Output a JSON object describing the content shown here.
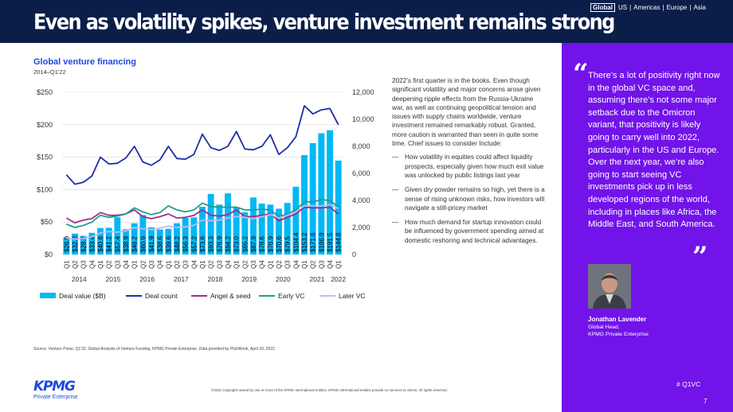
{
  "header": {
    "title": "Even as volatility spikes, venture investment remains strong",
    "regions": [
      "Global",
      "US",
      "Americas",
      "Europe",
      "Asia"
    ],
    "active_region": "Global"
  },
  "chart_heading": {
    "title": "Global venture financing",
    "subtitle": "2014–Q1'22"
  },
  "chart_data": {
    "type": "bar",
    "title": "Global venture financing",
    "subtitle": "2014–Q1'22",
    "quarters": [
      "Q1",
      "Q2",
      "Q3",
      "Q4",
      "Q1",
      "Q2",
      "Q3",
      "Q4",
      "Q1",
      "Q2",
      "Q3",
      "Q4",
      "Q1",
      "Q2",
      "Q3",
      "Q4",
      "Q1",
      "Q2",
      "Q3",
      "Q4",
      "Q1",
      "Q2",
      "Q3",
      "Q4",
      "Q1",
      "Q2",
      "Q3",
      "Q4",
      "Q1",
      "Q2",
      "Q3",
      "Q4",
      "Q1"
    ],
    "years": [
      {
        "label": "2014",
        "start": 0,
        "end": 3
      },
      {
        "label": "2015",
        "start": 4,
        "end": 7
      },
      {
        "label": "2016",
        "start": 8,
        "end": 11
      },
      {
        "label": "2017",
        "start": 12,
        "end": 15
      },
      {
        "label": "2018",
        "start": 16,
        "end": 19
      },
      {
        "label": "2019",
        "start": 20,
        "end": 23
      },
      {
        "label": "2020",
        "start": 24,
        "end": 27
      },
      {
        "label": "2021",
        "start": 28,
        "end": 31
      },
      {
        "label": "2022",
        "start": 32,
        "end": 32
      }
    ],
    "bar_labels": [
      "$26.0",
      "$32.2",
      "$28.7",
      "$33.4",
      "$40.8",
      "$41.2",
      "$57.4",
      "$38.9",
      "$48.2",
      "$60.9",
      "$41.9",
      "$38.6",
      "$39.6",
      "$48.2",
      "$56.3",
      "$57.2",
      "$73.6",
      "$93.3",
      "$76.9",
      "$94.2",
      "$73.0",
      "$65.2",
      "$87.9",
      "$78.6",
      "$76.9",
      "$70.6",
      "$79.5",
      "$104.4",
      "$153.2",
      "$171.6",
      "$186.9",
      "$191.5",
      "$144.8"
    ],
    "bar_values": [
      26.0,
      32.2,
      28.7,
      33.4,
      40.8,
      41.2,
      57.4,
      38.9,
      48.2,
      60.9,
      41.9,
      38.6,
      39.6,
      48.2,
      56.3,
      57.2,
      73.6,
      93.3,
      76.9,
      94.2,
      73.0,
      65.2,
      87.9,
      78.6,
      76.9,
      70.6,
      79.5,
      104.4,
      153.2,
      171.6,
      186.9,
      191.5,
      144.8
    ],
    "series": [
      {
        "name": "Deal value ($B)",
        "type": "bar",
        "axis": "left",
        "color": "#00b8f5"
      },
      {
        "name": "Deal count",
        "type": "line",
        "axis": "right",
        "color": "#1e2ea8",
        "values": [
          5900,
          5200,
          5350,
          5800,
          7200,
          6700,
          6750,
          7150,
          8000,
          6850,
          6600,
          7000,
          8000,
          7100,
          7050,
          7400,
          8900,
          7900,
          7700,
          8000,
          9100,
          7800,
          7750,
          8000,
          8850,
          7400,
          7900,
          8700,
          11000,
          10400,
          10700,
          10800,
          9600
        ]
      },
      {
        "name": "Angel & seed",
        "type": "line",
        "axis": "right",
        "color": "#9b2f8f",
        "values": [
          2700,
          2350,
          2550,
          2650,
          3100,
          2900,
          2900,
          3000,
          3300,
          2800,
          2650,
          2800,
          3000,
          2700,
          2750,
          2900,
          3300,
          2900,
          2850,
          2950,
          3300,
          2800,
          2800,
          2900,
          3000,
          2500,
          2750,
          3000,
          3500,
          3450,
          3450,
          3500,
          3000
        ]
      },
      {
        "name": "Early VC",
        "type": "line",
        "axis": "right",
        "color": "#1f9e8d",
        "values": [
          2250,
          2000,
          2150,
          2400,
          2900,
          2750,
          2850,
          3000,
          3450,
          3150,
          2950,
          3100,
          3600,
          3300,
          3150,
          3300,
          3800,
          3550,
          3500,
          3500,
          3500,
          3300,
          3300,
          3350,
          3300,
          2800,
          3000,
          3300,
          3900,
          3900,
          4050,
          4000,
          3500
        ]
      },
      {
        "name": "Later VC",
        "type": "line",
        "axis": "right",
        "color": "#c8b7ec",
        "values": [
          1200,
          1150,
          1200,
          1300,
          1600,
          1700,
          1650,
          1750,
          2000,
          1900,
          1850,
          1950,
          2100,
          2000,
          2050,
          2150,
          2550,
          2500,
          2550,
          2700,
          2800,
          2750,
          2650,
          2800,
          2950,
          2700,
          2900,
          3150,
          3600,
          3600,
          3600,
          3700,
          3400
        ]
      }
    ],
    "left_axis": {
      "range": [
        0,
        250
      ],
      "ticks": [
        "$0",
        "$50",
        "$100",
        "$150",
        "$200",
        "$250"
      ],
      "values": [
        0,
        50,
        100,
        150,
        200,
        250
      ]
    },
    "right_axis": {
      "range": [
        0,
        12000
      ],
      "ticks": [
        "0",
        "2,000",
        "4,000",
        "6,000",
        "8,000",
        "10,000",
        "12,000"
      ],
      "values": [
        0,
        2000,
        4000,
        6000,
        8000,
        10000,
        12000
      ]
    },
    "grid": true,
    "legend_position": "bottom"
  },
  "body": {
    "intro": "2022’s first quarter is in the books. Even though significant volatility and major concerns arose given deepening ripple effects from the Russia-Ukraine war, as well as continuing geopolitical tension and issues with supply chains worldwide, venture investment remained remarkably robust. Granted, more caution is warranted than seen in quite some time. Chief issues to consider Include:",
    "dash": "—",
    "bullets": [
      "How volatility in equities could affect liquidity prospects, especially given how much exit value was unlocked by public listings last year",
      "Given dry powder remains so high, yet there is a sense of rising unknown risks, how investors will navigate a still-pricey market",
      "How much demand for startup innovation could be influenced by government spending aimed at domestic reshoring and technical advantages."
    ]
  },
  "quote": {
    "open_mark": "“",
    "close_mark": "”",
    "text": "There’s a lot of positivity right now in the global VC space and, assuming there’s not some major setback due to the Omicron variant, that positivity is likely going to carry well into 2022, particularly in the US and Europe. Over the next year, we’re also going to start seeing VC investments pick up in less developed regions of the world, including in places like Africa, the Middle East, and South America.",
    "name": "Jonathan Lavender",
    "role_line1": "Global Head,",
    "role_line2": "KPMG Private Enterprise",
    "hashtag": "# Q1VC",
    "page_number": "7"
  },
  "footer": {
    "source": "Source: Venture Pulse, Q1'22. Global Analysis of Venture Funding, KPMG Private Enterprise. Data provided by PitchBook, April 20, 2022.",
    "copyright": "©2022 Copyright owned by one or more of the KPMG International entities. KPMG International entities provide no services to clients. All rights reserved.",
    "logo_word": "KPMG",
    "logo_sub": "Private Enterprise"
  }
}
